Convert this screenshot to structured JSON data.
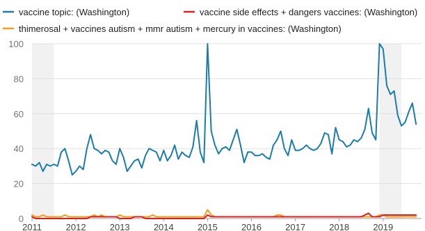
{
  "chart_data": {
    "type": "line",
    "title": "",
    "xlabel": "",
    "ylabel": "",
    "ylim": [
      0,
      100
    ],
    "xlim": [
      "2011-01",
      "2019-12"
    ],
    "y_ticks": [
      "0",
      "20",
      "40",
      "60",
      "80",
      "100"
    ],
    "x_ticks": [
      "2011",
      "2012",
      "2013",
      "2014",
      "2015",
      "2016",
      "2017",
      "2018",
      "2019"
    ],
    "grid": "horizontal",
    "legend_position": "top",
    "shaded_periods": [
      {
        "start": "2011-01",
        "end": "2011-07"
      },
      {
        "start": "2018-12",
        "end": "2019-06"
      }
    ],
    "series": [
      {
        "name": "vaccine topic: (Washington)",
        "color": "#1a7ca8",
        "start": "2011-01",
        "values": [
          31,
          30,
          32,
          27,
          31,
          30,
          31,
          30,
          38,
          40,
          33,
          25,
          27,
          30,
          28,
          40,
          48,
          40,
          39,
          37,
          39,
          38,
          33,
          31,
          40,
          35,
          27,
          30,
          33,
          34,
          29,
          36,
          40,
          39,
          38,
          33,
          39,
          33,
          36,
          42,
          34,
          38,
          36,
          35,
          41,
          56,
          38,
          32,
          100,
          50,
          42,
          37,
          40,
          41,
          39,
          45,
          51,
          42,
          32,
          38,
          38,
          36,
          36,
          37,
          35,
          34,
          42,
          45,
          50,
          40,
          36,
          45,
          39,
          39,
          40,
          42,
          40,
          39,
          40,
          43,
          49,
          48,
          37,
          52,
          45,
          44,
          41,
          42,
          45,
          44,
          46,
          51,
          63,
          49,
          45,
          100,
          97,
          76,
          71,
          73,
          59,
          53,
          55,
          61,
          66,
          54
        ],
        "values_unit": "monthly, interest index"
      },
      {
        "name": "vaccine side effects + dangers vaccines: (Washington)",
        "color": "#db1f1f",
        "start": "2011-01",
        "values": [
          1,
          0,
          0,
          0,
          0,
          0,
          0,
          0,
          0,
          0,
          0,
          0,
          0,
          0,
          0,
          0,
          1,
          1,
          1,
          1,
          1,
          1,
          1,
          1,
          0,
          0,
          0,
          0,
          1,
          1,
          1,
          0,
          0,
          0,
          0,
          0,
          0,
          0,
          0,
          0,
          0,
          0,
          0,
          0,
          0,
          0,
          0,
          0,
          2,
          1,
          1,
          1,
          1,
          1,
          1,
          1,
          1,
          1,
          1,
          1,
          1,
          1,
          1,
          1,
          1,
          1,
          1,
          1,
          1,
          1,
          1,
          1,
          1,
          1,
          1,
          1,
          1,
          1,
          1,
          1,
          1,
          1,
          1,
          1,
          1,
          1,
          1,
          1,
          1,
          1,
          1,
          2,
          3,
          1,
          1,
          1,
          2,
          2,
          2,
          2,
          2,
          2,
          2,
          2,
          2,
          2
        ]
      },
      {
        "name": "thimerosal + vaccines autism + mmr autism + mercury in vaccines: (Washington)",
        "color": "#f29c1e",
        "start": "2011-01",
        "values": [
          2,
          1,
          1,
          2,
          1,
          1,
          1,
          1,
          1,
          2,
          1,
          1,
          1,
          1,
          1,
          1,
          1,
          2,
          1,
          2,
          1,
          1,
          1,
          1,
          2,
          1,
          1,
          1,
          1,
          1,
          1,
          1,
          1,
          2,
          1,
          1,
          1,
          1,
          1,
          1,
          1,
          1,
          1,
          1,
          1,
          1,
          1,
          1,
          5,
          2,
          1,
          1,
          1,
          1,
          1,
          1,
          1,
          1,
          1,
          1,
          1,
          1,
          1,
          1,
          1,
          1,
          1,
          2,
          2,
          1,
          1,
          1,
          1,
          1,
          1,
          1,
          1,
          1,
          1,
          1,
          1,
          1,
          1,
          1,
          1,
          1,
          1,
          1,
          1,
          1,
          1,
          1,
          1,
          1,
          1,
          2,
          2,
          1,
          1,
          1,
          1,
          1,
          1,
          1,
          1,
          1
        ]
      }
    ]
  }
}
